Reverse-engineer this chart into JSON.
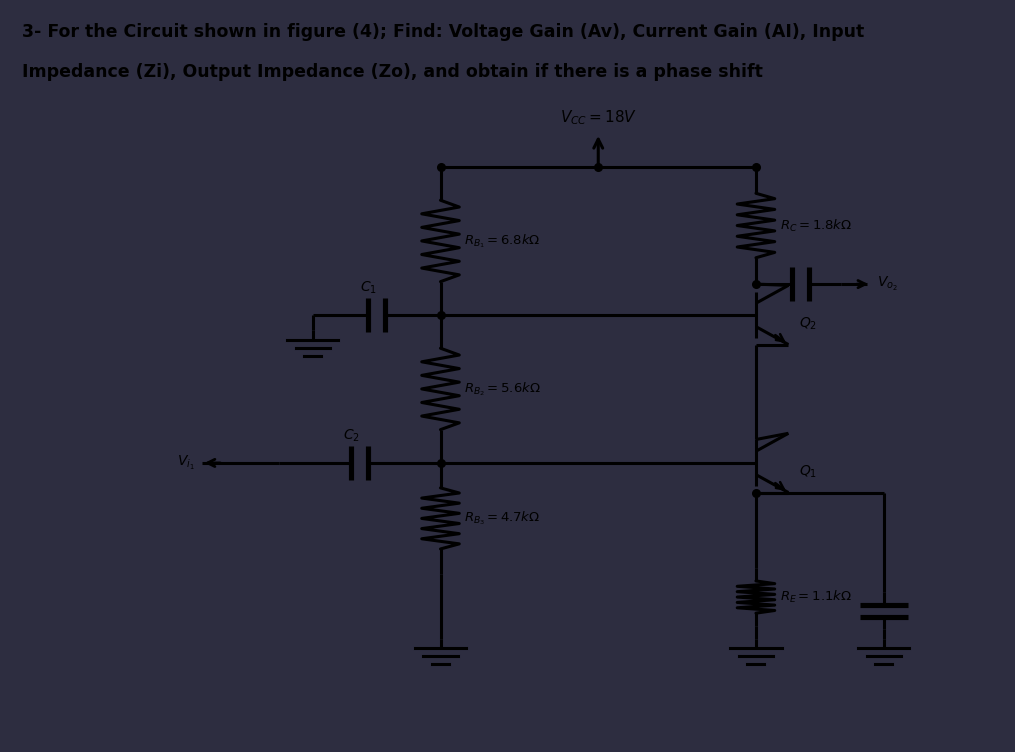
{
  "title_text_line1": "3- For the Circuit shown in figure (4); Find: Voltage Gain (Av), Current Gain (AI), Input",
  "title_text_line2": "Impedance (Zi), Output Impedance (Zo), and obtain if there is a phase shift",
  "title_bg": "#ccc8dc",
  "outer_bg": "#2d2d40",
  "circuit_bg": "#dcd8ec",
  "line_color": "#000000",
  "text_color": "#000000",
  "vcc_label": "$V_{CC}=18V$",
  "rb1_label": "$R_{B_1}=6.8k\\Omega$",
  "rb2_label": "$R_{B_2}=5.6k\\Omega$",
  "rb3_label": "$R_{B_3}=4.7k\\Omega$",
  "rc_label": "$R_C=1.8k\\Omega$",
  "re_label": "$R_E=1.1k\\Omega$",
  "c1_label": "$C_1$",
  "c2_label": "$C_2$",
  "q1_label": "$Q_1$",
  "q2_label": "$Q_2$",
  "vo2_label": "$V_{o_2}$",
  "vi1_label": "$V_{i_1}$"
}
